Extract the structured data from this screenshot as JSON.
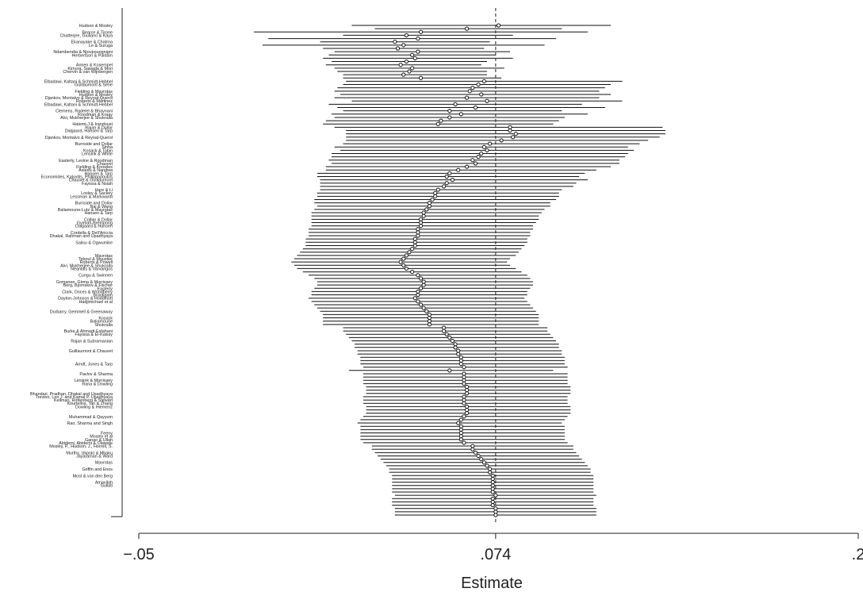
{
  "chart_data": {
    "type": "forest",
    "xlabel": "Estimate",
    "xticks": [
      {
        "value": -0.05,
        "label": "−.05"
      },
      {
        "value": 0.074,
        "label": ".074"
      },
      {
        "value": 0.2,
        "label": ".2"
      }
    ],
    "xlim": [
      -0.05,
      0.2
    ],
    "reference_line": 0.074,
    "reference_line_style": "dashed",
    "marker": "hollow-circle",
    "row_count": 150,
    "estimates": [
      0.075,
      0.064,
      0.048,
      0.043,
      0.047,
      0.039,
      0.042,
      0.04,
      0.047,
      0.045,
      0.046,
      0.043,
      0.041,
      0.045,
      0.044,
      0.042,
      0.048,
      0.07,
      0.068,
      0.066,
      0.065,
      0.069,
      0.064,
      0.071,
      0.06,
      0.067,
      0.058,
      0.062,
      0.058,
      0.055,
      0.054,
      0.079,
      0.079,
      0.081,
      0.08,
      0.076,
      0.072,
      0.07,
      0.071,
      0.069,
      0.068,
      0.066,
      0.067,
      0.064,
      0.061,
      0.058,
      0.057,
      0.059,
      0.057,
      0.056,
      0.054,
      0.053,
      0.053,
      0.052,
      0.051,
      0.051,
      0.05,
      0.049,
      0.049,
      0.048,
      0.048,
      0.048,
      0.047,
      0.047,
      0.047,
      0.046,
      0.046,
      0.046,
      0.045,
      0.044,
      0.043,
      0.042,
      0.041,
      0.042,
      0.043,
      0.045,
      0.047,
      0.048,
      0.049,
      0.049,
      0.048,
      0.047,
      0.047,
      0.046,
      0.047,
      0.048,
      0.049,
      0.05,
      0.051,
      0.051,
      0.051,
      0.051,
      0.056,
      0.056,
      0.057,
      0.058,
      0.059,
      0.06,
      0.06,
      0.061,
      0.061,
      0.062,
      0.062,
      0.062,
      0.063,
      0.058,
      0.063,
      0.063,
      0.063,
      0.063,
      0.064,
      0.064,
      0.064,
      0.063,
      0.063,
      0.063,
      0.064,
      0.064,
      0.064,
      0.063,
      0.062,
      0.061,
      0.062,
      0.062,
      0.062,
      0.062,
      0.062,
      0.063,
      0.066,
      0.066,
      0.067,
      0.068,
      0.069,
      0.07,
      0.071,
      0.072,
      0.072,
      0.073,
      0.073,
      0.073,
      0.073,
      0.073,
      0.073,
      0.074,
      0.073,
      0.073,
      0.073,
      0.074,
      0.074,
      0.074
    ],
    "ci_low": [
      0.024,
      0.032,
      -0.01,
      0.021,
      -0.005,
      0.013,
      -0.007,
      0.014,
      0.018,
      0.016,
      0.014,
      0.017,
      0.015,
      0.018,
      0.019,
      0.021,
      0.021,
      0.022,
      0.021,
      0.019,
      0.018,
      0.02,
      0.018,
      0.024,
      0.016,
      0.019,
      0.021,
      0.017,
      0.018,
      0.015,
      0.014,
      0.018,
      0.022,
      0.022,
      0.022,
      0.022,
      0.021,
      0.018,
      0.02,
      0.017,
      0.017,
      0.016,
      0.017,
      0.015,
      0.015,
      0.012,
      0.012,
      0.013,
      0.013,
      0.013,
      0.013,
      0.012,
      0.012,
      0.011,
      0.011,
      0.012,
      0.011,
      0.01,
      0.01,
      0.01,
      0.01,
      0.01,
      0.009,
      0.009,
      0.009,
      0.008,
      0.008,
      0.008,
      0.007,
      0.006,
      0.005,
      0.004,
      0.003,
      0.004,
      0.005,
      0.007,
      0.009,
      0.011,
      0.012,
      0.012,
      0.011,
      0.01,
      0.01,
      0.009,
      0.01,
      0.011,
      0.012,
      0.013,
      0.014,
      0.014,
      0.014,
      0.014,
      0.021,
      0.021,
      0.022,
      0.023,
      0.024,
      0.025,
      0.025,
      0.026,
      0.026,
      0.027,
      0.027,
      0.027,
      0.028,
      0.023,
      0.028,
      0.028,
      0.028,
      0.028,
      0.029,
      0.029,
      0.029,
      0.028,
      0.028,
      0.028,
      0.029,
      0.029,
      0.029,
      0.028,
      0.027,
      0.026,
      0.027,
      0.027,
      0.027,
      0.027,
      0.027,
      0.028,
      0.031,
      0.031,
      0.032,
      0.033,
      0.034,
      0.035,
      0.036,
      0.037,
      0.037,
      0.038,
      0.038,
      0.038,
      0.038,
      0.038,
      0.038,
      0.039,
      0.038,
      0.038,
      0.038,
      0.039,
      0.039,
      0.039
    ],
    "ci_high": [
      0.114,
      0.097,
      0.106,
      0.08,
      0.095,
      0.072,
      0.091,
      0.07,
      0.079,
      0.074,
      0.08,
      0.071,
      0.069,
      0.077,
      0.071,
      0.071,
      0.076,
      0.118,
      0.114,
      0.112,
      0.11,
      0.114,
      0.11,
      0.118,
      0.104,
      0.112,
      0.097,
      0.106,
      0.098,
      0.096,
      0.094,
      0.132,
      0.133,
      0.133,
      0.131,
      0.127,
      0.124,
      0.12,
      0.122,
      0.12,
      0.119,
      0.117,
      0.117,
      0.114,
      0.109,
      0.105,
      0.103,
      0.106,
      0.102,
      0.101,
      0.097,
      0.096,
      0.096,
      0.095,
      0.093,
      0.093,
      0.091,
      0.09,
      0.089,
      0.089,
      0.088,
      0.087,
      0.087,
      0.086,
      0.086,
      0.085,
      0.085,
      0.084,
      0.083,
      0.082,
      0.081,
      0.079,
      0.078,
      0.079,
      0.081,
      0.083,
      0.085,
      0.086,
      0.087,
      0.087,
      0.086,
      0.085,
      0.085,
      0.084,
      0.085,
      0.086,
      0.087,
      0.088,
      0.089,
      0.089,
      0.089,
      0.089,
      0.092,
      0.092,
      0.093,
      0.094,
      0.095,
      0.096,
      0.096,
      0.097,
      0.097,
      0.098,
      0.098,
      0.098,
      0.099,
      0.094,
      0.099,
      0.099,
      0.099,
      0.099,
      0.1,
      0.1,
      0.1,
      0.099,
      0.099,
      0.099,
      0.1,
      0.1,
      0.1,
      0.099,
      0.098,
      0.097,
      0.098,
      0.098,
      0.098,
      0.098,
      0.098,
      0.099,
      0.101,
      0.101,
      0.102,
      0.103,
      0.104,
      0.105,
      0.106,
      0.107,
      0.107,
      0.108,
      0.108,
      0.108,
      0.108,
      0.108,
      0.108,
      0.109,
      0.108,
      0.108,
      0.108,
      0.109,
      0.109,
      0.109
    ],
    "row_labels": [
      {
        "row": 0,
        "text": "Hudson & Mosley"
      },
      {
        "row": 2,
        "text": "Bearce & Tirone"
      },
      {
        "row": 3,
        "text": "Chatterjee, Giuliano & Kaya"
      },
      {
        "row": 5,
        "text": "Ekanayake & Chatrna"
      },
      {
        "row": 6,
        "text": "Le & Suruga"
      },
      {
        "row": 8,
        "text": "Ndambendia & Njoupouognigni"
      },
      {
        "row": 9,
        "text": "Herbertson & Paldam"
      },
      {
        "row": 12,
        "text": "Annen & Kosempel"
      },
      {
        "row": 13,
        "text": "Kimura, Sawada & Mori"
      },
      {
        "row": 14,
        "text": "Chervin & van Wijnbergen"
      },
      {
        "row": 17,
        "text": "Elbadawi, Kaltani & Schmidt-Hebbel"
      },
      {
        "row": 18,
        "text": "Guillaumont & Sene"
      },
      {
        "row": 20,
        "text": "Fielding & Mavrotas"
      },
      {
        "row": 21,
        "text": "Hudson & Mosley"
      },
      {
        "row": 22,
        "text": "Djankov, Montalvo & Reynal-Querol"
      },
      {
        "row": 23,
        "text": "Roberts & Martinez"
      },
      {
        "row": 24,
        "text": "Elbadawi, Kaltani & Schmidt-Hebbel"
      },
      {
        "row": 26,
        "text": "Clemens, Radelet & Bhavnani"
      },
      {
        "row": 27,
        "text": "Roodman & Kraay"
      },
      {
        "row": 28,
        "text": "Alvi, Mukherjee & Shukralla"
      },
      {
        "row": 30,
        "text": "Hatemi-J & Irandoust"
      },
      {
        "row": 31,
        "text": "Rajan & Dollar"
      },
      {
        "row": 32,
        "text": "Dalgaard, Hansen & Tarp"
      },
      {
        "row": 34,
        "text": "Djankov, Montalvo & Reynal-Querol"
      },
      {
        "row": 36,
        "text": "Burnside and Dollar"
      },
      {
        "row": 37,
        "text": "Sinha"
      },
      {
        "row": 38,
        "text": "Kosack & Tobin"
      },
      {
        "row": 39,
        "text": "Lensink & White"
      },
      {
        "row": 41,
        "text": "Easterly, Levine & Roodman"
      },
      {
        "row": 42,
        "text": "Chauvet"
      },
      {
        "row": 43,
        "text": "Fielding & Knowles"
      },
      {
        "row": 44,
        "text": "Asiedu & Nandwa"
      },
      {
        "row": 45,
        "text": "Hansen & Tarp"
      },
      {
        "row": 46,
        "text": "Economides, Kalyvitis, Philippopoulos"
      },
      {
        "row": 47,
        "text": "Chauvet & Guillaumont"
      },
      {
        "row": 48,
        "text": "Fayissa & Nsiah"
      },
      {
        "row": 50,
        "text": "Hare & Li"
      },
      {
        "row": 51,
        "text": "Loxley & Sackey"
      },
      {
        "row": 52,
        "text": "Lessman & Markwardt"
      },
      {
        "row": 54,
        "text": "Burnside and Dollar"
      },
      {
        "row": 55,
        "text": "Bai & Wang"
      },
      {
        "row": 56,
        "text": "Baliamoune-Lutz & Mavrotas"
      },
      {
        "row": 57,
        "text": "Hansen & Tarp"
      },
      {
        "row": 59,
        "text": "Collier & Dollar"
      },
      {
        "row": 60,
        "text": "Gyimah-Brempong"
      },
      {
        "row": 61,
        "text": "Dalgaard & Hansen"
      },
      {
        "row": 63,
        "text": "Cordella & Dell'Ariccia"
      },
      {
        "row": 64,
        "text": "Dhakal, Rahman and Upadhyaya"
      },
      {
        "row": 66,
        "text": "Salisu & Ogwumike"
      },
      {
        "row": 70,
        "text": "Mavrotas"
      },
      {
        "row": 71,
        "text": "Teboul & Moustier"
      },
      {
        "row": 72,
        "text": "Roberts & Powell"
      },
      {
        "row": 73,
        "text": "Alvi, Mukherjee & Shukralla"
      },
      {
        "row": 74,
        "text": "Neanidis & Varvarigos"
      },
      {
        "row": 76,
        "text": "Cungu & Swinnen"
      },
      {
        "row": 78,
        "text": "Gomanee, Girma & Morrissey"
      },
      {
        "row": 79,
        "text": "Berg, Bjornskov & Fischer"
      },
      {
        "row": 80,
        "text": "Easterly"
      },
      {
        "row": 81,
        "text": "Clark, Doces & Woodberry"
      },
      {
        "row": 82,
        "text": "Brautigam"
      },
      {
        "row": 83,
        "text": "Dayton-Johnson & Hoddinott"
      },
      {
        "row": 84,
        "text": "Hadjimichael et al"
      },
      {
        "row": 87,
        "text": "Durbarry, Gemmell & Greenaway"
      },
      {
        "row": 89,
        "text": "Kosack"
      },
      {
        "row": 90,
        "text": "Baliamoune"
      },
      {
        "row": 91,
        "text": "Shukralla"
      },
      {
        "row": 93,
        "text": "Burke & Ahmadi-Esfahani"
      },
      {
        "row": 94,
        "text": "Fayissa & El-Kaissy"
      },
      {
        "row": 96,
        "text": "Rajan & Subramanian"
      },
      {
        "row": 99,
        "text": "Guillaumont & Chauvet"
      },
      {
        "row": 103,
        "text": "Arndt, Jones & Tarp"
      },
      {
        "row": 106,
        "text": "Pavlov & Sharma"
      },
      {
        "row": 108,
        "text": "Lensink & Morrissey"
      },
      {
        "row": 109,
        "text": "Rana & Dowling"
      },
      {
        "row": 112,
        "text": "Bhandari, Pradhan, Dhakal and Upadhyaya"
      },
      {
        "row": 113,
        "text": "Trevino, Len J. and Kamal P. Upadhyaya"
      },
      {
        "row": 114,
        "text": "Kellman, Rottenberg & Stewart"
      },
      {
        "row": 115,
        "text": "Kourtellos, Tan & Zhang"
      },
      {
        "row": 116,
        "text": "Dowling & Hiemenz"
      },
      {
        "row": 119,
        "text": "Muhammad & Qayyum"
      },
      {
        "row": 121,
        "text": "Rao, Sharma and Singh"
      },
      {
        "row": 124,
        "text": "Feeny"
      },
      {
        "row": 125,
        "text": "Mosley et al"
      },
      {
        "row": 126,
        "text": "Ganao & Ullah"
      },
      {
        "row": 127,
        "text": "Abidemi, Abidemi & Olawale"
      },
      {
        "row": 128,
        "text": "Mosley, P., Hudson, J., Horrell, S."
      },
      {
        "row": 130,
        "text": "Murthy, Ukpolo & Mbaku"
      },
      {
        "row": 131,
        "text": "Jayaraman & Ward"
      },
      {
        "row": 133,
        "text": "Mavrotas"
      },
      {
        "row": 135,
        "text": "Griffin and Enos"
      },
      {
        "row": 137,
        "text": "Most & van den Berg"
      },
      {
        "row": 139,
        "text": "Amavilah"
      },
      {
        "row": 140,
        "text": "Gullati"
      }
    ]
  }
}
